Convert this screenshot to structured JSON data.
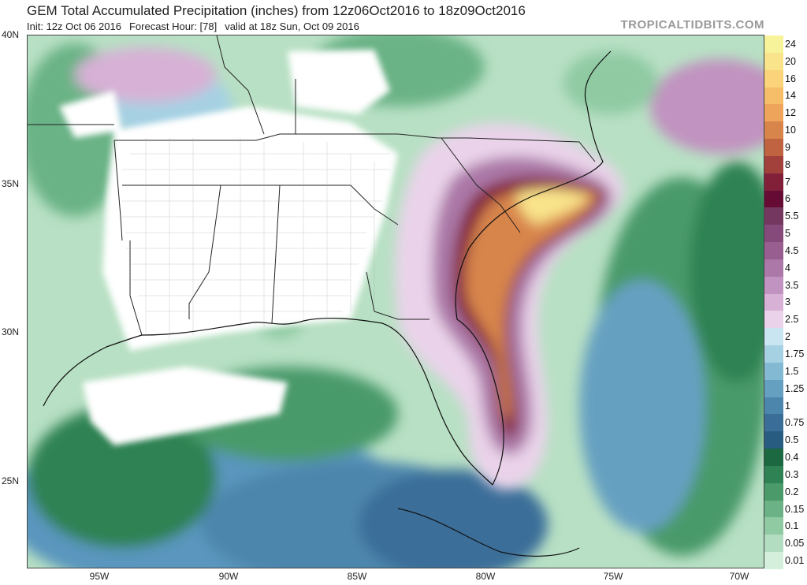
{
  "header": {
    "title": "GEM Total Accumulated Precipitation (inches) from 12z06Oct2016 to 18z09Oct2016",
    "init": "Init: 12z Oct 06 2016",
    "forecast_hour": "Forecast Hour: [78]",
    "valid": "valid at 18z Sun, Oct 09 2016",
    "brand": "TROPICALTIDBITS.COM"
  },
  "axes": {
    "lat_labels": [
      "40N",
      "35N",
      "30N",
      "25N"
    ],
    "lon_labels": [
      "95W",
      "90W",
      "85W",
      "80W",
      "75W",
      "70W"
    ]
  },
  "legend": {
    "levels": [
      {
        "label": "24",
        "color": "#f7f39a"
      },
      {
        "label": "20",
        "color": "#f9e48b"
      },
      {
        "label": "16",
        "color": "#fad37a"
      },
      {
        "label": "14",
        "color": "#f6be68"
      },
      {
        "label": "12",
        "color": "#eea45b"
      },
      {
        "label": "10",
        "color": "#d8854c"
      },
      {
        "label": "9",
        "color": "#bf6340"
      },
      {
        "label": "8",
        "color": "#a2403c"
      },
      {
        "label": "7",
        "color": "#82203a"
      },
      {
        "label": "6",
        "color": "#660c34"
      },
      {
        "label": "5.5",
        "color": "#733760"
      },
      {
        "label": "5",
        "color": "#85497a"
      },
      {
        "label": "4.5",
        "color": "#975e8f"
      },
      {
        "label": "4",
        "color": "#ab78a7"
      },
      {
        "label": "3.5",
        "color": "#c193c0"
      },
      {
        "label": "3",
        "color": "#d7b1d6"
      },
      {
        "label": "2.5",
        "color": "#ead3ea"
      },
      {
        "label": "2",
        "color": "#c9e5f1"
      },
      {
        "label": "1.75",
        "color": "#a6d1e3"
      },
      {
        "label": "1.5",
        "color": "#84b9d3"
      },
      {
        "label": "1.25",
        "color": "#66a0c1"
      },
      {
        "label": "1",
        "color": "#4d86ad"
      },
      {
        "label": "0.75",
        "color": "#3a6e99"
      },
      {
        "label": "0.5",
        "color": "#285c80"
      },
      {
        "label": "0.4",
        "color": "#1c6840"
      },
      {
        "label": "0.3",
        "color": "#2f8253"
      },
      {
        "label": "0.2",
        "color": "#4a9a6a"
      },
      {
        "label": "0.15",
        "color": "#6bb386"
      },
      {
        "label": "0.1",
        "color": "#8fcaa3"
      },
      {
        "label": "0.05",
        "color": "#b2ddc0"
      },
      {
        "label": "0.01",
        "color": "#d4efdc"
      }
    ]
  }
}
